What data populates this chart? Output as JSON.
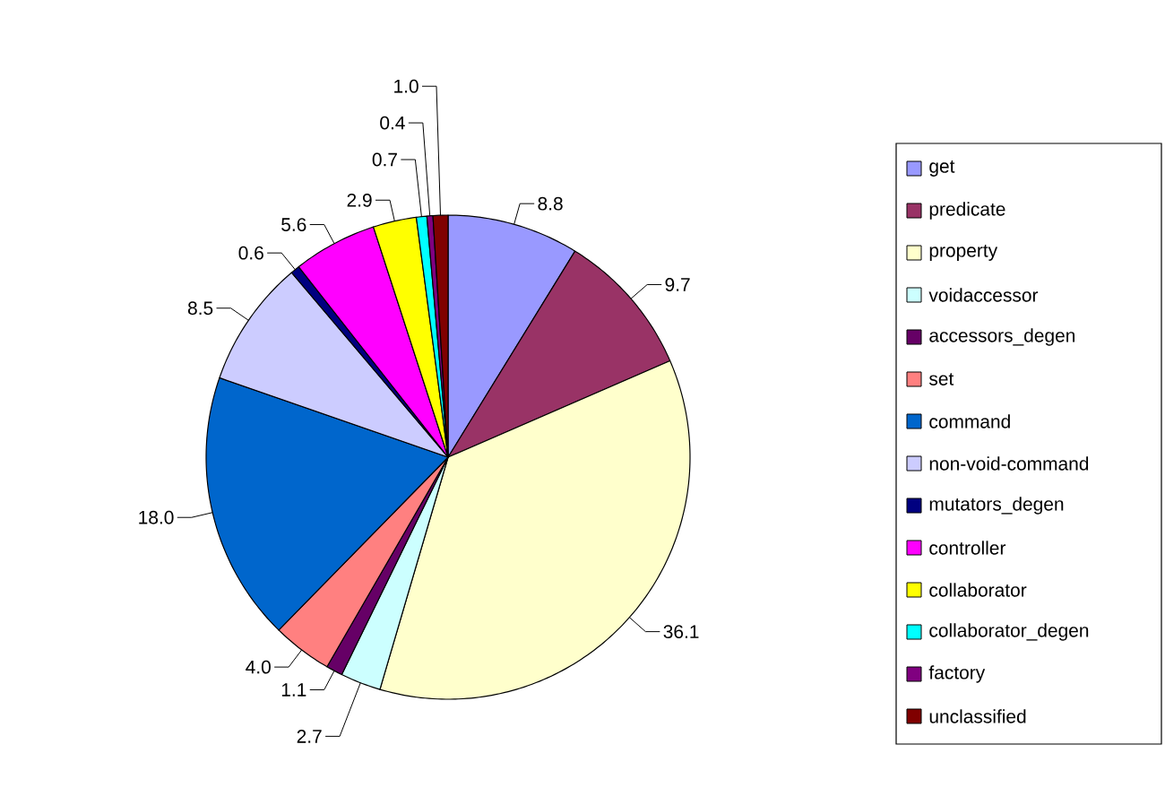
{
  "chart_data": {
    "type": "pie",
    "categories": [
      "get",
      "predicate",
      "property",
      "voidaccessor",
      "accessors_degen",
      "set",
      "command",
      "non-void-command",
      "mutators_degen",
      "controller",
      "collaborator",
      "collaborator_degen",
      "factory",
      "unclassified"
    ],
    "values": [
      8.8,
      9.7,
      36.1,
      2.7,
      1.1,
      4.0,
      18.0,
      8.5,
      0.6,
      5.6,
      2.9,
      0.7,
      0.4,
      1.0
    ],
    "value_labels": [
      "8.8",
      "9.7",
      "36.1",
      "2.7",
      "1.1",
      "4.0",
      "18.0",
      "8.5",
      "0.6",
      "5.6",
      "2.9",
      "0.7",
      "0.4",
      "1.0"
    ],
    "colors": [
      "#9999ff",
      "#993366",
      "#ffffcc",
      "#ccffff",
      "#660066",
      "#ff8080",
      "#0066cc",
      "#ccccff",
      "#000080",
      "#ff00ff",
      "#ffff00",
      "#00ffff",
      "#800080",
      "#800000"
    ],
    "legend": "right"
  }
}
